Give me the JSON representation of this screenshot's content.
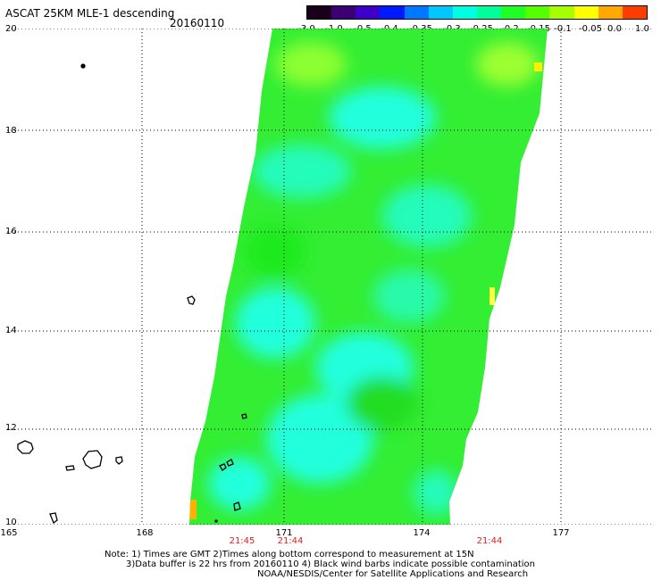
{
  "header": {
    "title": "ASCAT 25KM MLE-1 descending",
    "date": "20160110"
  },
  "colorbar": {
    "labels": [
      "-3.0",
      "-1.0",
      "-0.5",
      "-0.4",
      "-0.35",
      "-0.3",
      "-0.25",
      "-0.2",
      "-0.15",
      "-0.1",
      "-0.05",
      "0.0",
      "1.0"
    ],
    "colors": [
      "#1a0019",
      "#3c0075",
      "#3d00c8",
      "#0019ff",
      "#0078ff",
      "#00c8ff",
      "#00ffe1",
      "#00ff9b",
      "#1eff23",
      "#55ff00",
      "#a6ff00",
      "#ffff00",
      "#ffa800",
      "#ff3c00"
    ]
  },
  "axes": {
    "lat_labels": [
      "20",
      "18",
      "16",
      "14",
      "12",
      "10"
    ],
    "lon_labels": [
      "165",
      "168",
      "171",
      "174",
      "177"
    ],
    "time_labels": [
      "21:45",
      "21:44",
      "21:44"
    ]
  },
  "notes": [
    "Note: 1) Times are GMT 2)Times along bottom correspond to measurement at 15N",
    "3)Data buffer is 22 hrs from 20160110 4) Black wind barbs indicate possible contamination",
    "NOAA/NESDIS/Center for Satellite Applications and Research"
  ],
  "colors": {
    "grid": "#000000",
    "time_label": "#e01e1e",
    "swath_base": "#33ee33",
    "swath_cyan": "#22ffdd"
  }
}
